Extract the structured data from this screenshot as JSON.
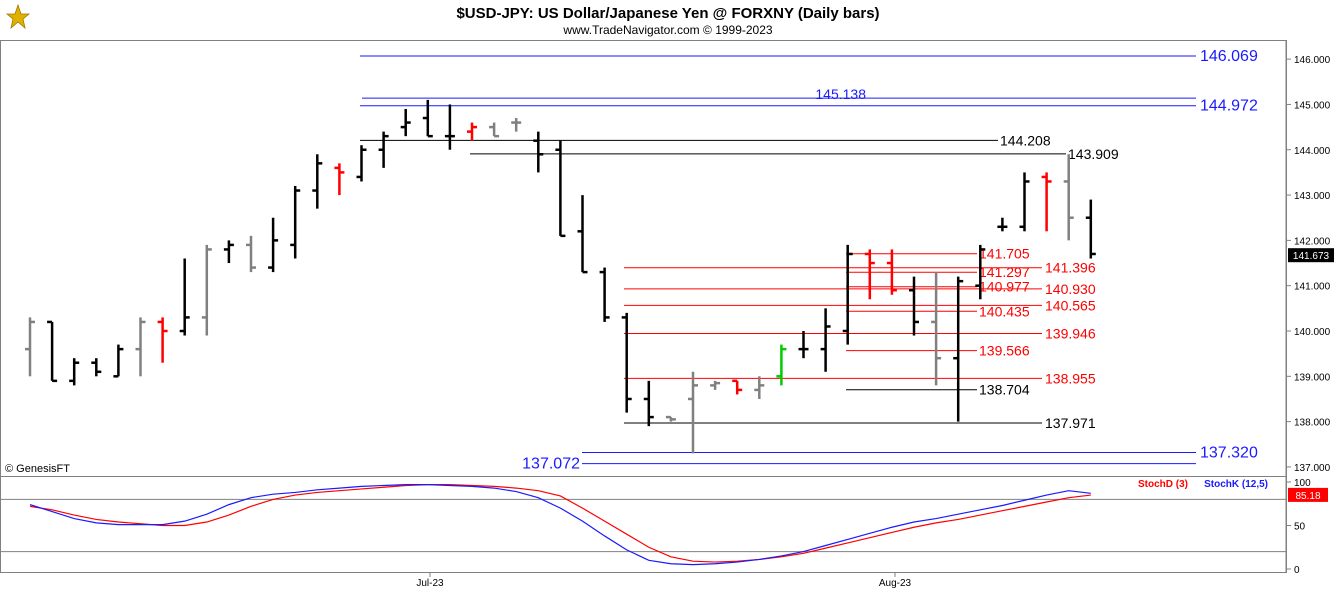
{
  "header": {
    "title": "$USD-JPY:  US Dollar/Japanese Yen @ FORXNY  (Daily bars)",
    "subtitle": "www.TradeNavigator.com © 1999-2023",
    "copyright": "© GenesisFT"
  },
  "colors": {
    "up_bar": "#000000",
    "down_bar": "#808080",
    "red_bar": "#ff0000",
    "green_bar": "#00cc00",
    "blue_level": "#1a1aff",
    "red_level": "#ff0000",
    "black_level": "#000000",
    "stochD": "#ff0000",
    "stochK": "#1a1aff"
  },
  "chart_data": [
    {
      "type": "bar",
      "subtype": "ohlc",
      "ylim": [
        136.8,
        146.4
      ],
      "y_ticks": [
        "137.000",
        "138.000",
        "139.000",
        "140.000",
        "141.000",
        "142.000",
        "143.000",
        "144.000",
        "145.000",
        "146.000"
      ],
      "x_ticks": [
        "Jul-23",
        "Aug-23"
      ],
      "last_price": "141.673",
      "bars": [
        {
          "o": 139.6,
          "h": 140.3,
          "l": 139.0,
          "c": 140.2,
          "col": "down"
        },
        {
          "o": 140.2,
          "h": 140.2,
          "l": 138.9,
          "c": 138.9,
          "col": "up"
        },
        {
          "o": 138.9,
          "h": 139.4,
          "l": 138.8,
          "c": 139.3,
          "col": "up"
        },
        {
          "o": 139.3,
          "h": 139.4,
          "l": 139.0,
          "c": 139.1,
          "col": "up"
        },
        {
          "o": 139.0,
          "h": 139.7,
          "l": 139.0,
          "c": 139.6,
          "col": "up"
        },
        {
          "o": 139.6,
          "h": 140.3,
          "l": 139.0,
          "c": 140.2,
          "col": "down"
        },
        {
          "o": 140.2,
          "h": 140.3,
          "l": 139.3,
          "c": 140.0,
          "col": "red"
        },
        {
          "o": 140.0,
          "h": 141.6,
          "l": 139.9,
          "c": 140.3,
          "col": "up"
        },
        {
          "o": 140.3,
          "h": 141.9,
          "l": 139.9,
          "c": 141.8,
          "col": "down"
        },
        {
          "o": 141.8,
          "h": 142.0,
          "l": 141.5,
          "c": 141.9,
          "col": "up"
        },
        {
          "o": 141.9,
          "h": 142.1,
          "l": 141.3,
          "c": 141.4,
          "col": "down"
        },
        {
          "o": 141.4,
          "h": 142.5,
          "l": 141.3,
          "c": 142.0,
          "col": "up"
        },
        {
          "o": 141.9,
          "h": 143.2,
          "l": 141.6,
          "c": 143.1,
          "col": "up"
        },
        {
          "o": 143.1,
          "h": 143.9,
          "l": 142.7,
          "c": 143.7,
          "col": "up"
        },
        {
          "o": 143.6,
          "h": 143.7,
          "l": 143.0,
          "c": 143.5,
          "col": "red"
        },
        {
          "o": 143.4,
          "h": 144.1,
          "l": 143.3,
          "c": 144.0,
          "col": "up"
        },
        {
          "o": 144.0,
          "h": 144.4,
          "l": 143.6,
          "c": 144.3,
          "col": "up"
        },
        {
          "o": 144.5,
          "h": 144.9,
          "l": 144.3,
          "c": 144.6,
          "col": "up"
        },
        {
          "o": 144.7,
          "h": 145.1,
          "l": 144.3,
          "c": 144.3,
          "col": "up"
        },
        {
          "o": 144.3,
          "h": 145.0,
          "l": 144.0,
          "c": 144.3,
          "col": "up"
        },
        {
          "o": 144.4,
          "h": 144.6,
          "l": 144.2,
          "c": 144.5,
          "col": "red"
        },
        {
          "o": 144.5,
          "h": 144.6,
          "l": 144.3,
          "c": 144.3,
          "col": "down"
        },
        {
          "o": 144.6,
          "h": 144.7,
          "l": 144.4,
          "c": 144.6,
          "col": "down"
        },
        {
          "o": 144.2,
          "h": 144.4,
          "l": 143.5,
          "c": 143.9,
          "col": "up"
        },
        {
          "o": 144.0,
          "h": 144.2,
          "l": 142.1,
          "c": 142.1,
          "col": "up"
        },
        {
          "o": 142.2,
          "h": 143.0,
          "l": 141.3,
          "c": 141.3,
          "col": "up"
        },
        {
          "o": 141.3,
          "h": 141.4,
          "l": 140.2,
          "c": 140.3,
          "col": "up"
        },
        {
          "o": 140.3,
          "h": 140.4,
          "l": 138.2,
          "c": 138.5,
          "col": "up"
        },
        {
          "o": 138.5,
          "h": 138.9,
          "l": 137.9,
          "c": 138.1,
          "col": "up"
        },
        {
          "o": 138.1,
          "h": 138.1,
          "l": 138.0,
          "c": 138.05,
          "col": "down"
        },
        {
          "o": 138.5,
          "h": 139.1,
          "l": 137.3,
          "c": 138.8,
          "col": "down"
        },
        {
          "o": 138.8,
          "h": 138.9,
          "l": 138.7,
          "c": 138.85,
          "col": "down"
        },
        {
          "o": 138.9,
          "h": 138.9,
          "l": 138.6,
          "c": 138.7,
          "col": "red"
        },
        {
          "o": 138.7,
          "h": 139.0,
          "l": 138.5,
          "c": 138.8,
          "col": "down"
        },
        {
          "o": 139.0,
          "h": 139.7,
          "l": 138.8,
          "c": 139.6,
          "col": "green"
        },
        {
          "o": 139.6,
          "h": 140.0,
          "l": 139.4,
          "c": 139.6,
          "col": "up"
        },
        {
          "o": 139.6,
          "h": 140.5,
          "l": 139.1,
          "c": 140.1,
          "col": "up"
        },
        {
          "o": 140.0,
          "h": 141.9,
          "l": 139.7,
          "c": 141.7,
          "col": "up"
        },
        {
          "o": 141.7,
          "h": 141.8,
          "l": 140.7,
          "c": 141.5,
          "col": "red"
        },
        {
          "o": 141.5,
          "h": 141.8,
          "l": 140.8,
          "c": 140.9,
          "col": "red"
        },
        {
          "o": 140.9,
          "h": 141.2,
          "l": 139.9,
          "c": 140.2,
          "col": "up"
        },
        {
          "o": 140.2,
          "h": 141.3,
          "l": 138.8,
          "c": 139.4,
          "col": "down"
        },
        {
          "o": 139.4,
          "h": 141.2,
          "l": 138.0,
          "c": 141.1,
          "col": "up"
        },
        {
          "o": 141.0,
          "h": 141.9,
          "l": 140.7,
          "c": 141.8,
          "col": "up"
        },
        {
          "o": 142.3,
          "h": 142.5,
          "l": 142.2,
          "c": 142.3,
          "col": "up"
        },
        {
          "o": 142.3,
          "h": 143.5,
          "l": 142.2,
          "c": 143.3,
          "col": "up"
        },
        {
          "o": 143.4,
          "h": 143.5,
          "l": 142.2,
          "c": 143.3,
          "col": "red"
        },
        {
          "o": 143.3,
          "h": 143.9,
          "l": 142.0,
          "c": 142.5,
          "col": "down"
        },
        {
          "o": 142.5,
          "h": 142.9,
          "l": 141.6,
          "c": 141.7,
          "col": "up"
        }
      ],
      "levels": [
        {
          "value": 146.069,
          "label": "146.069",
          "color": "blue",
          "side": "right"
        },
        {
          "value": 145.138,
          "label": "145.138",
          "color": "blue",
          "side": "mid"
        },
        {
          "value": 144.972,
          "label": "144.972",
          "color": "blue",
          "side": "right"
        },
        {
          "value": 144.208,
          "label": "144.208",
          "color": "black",
          "side": "mid"
        },
        {
          "value": 143.909,
          "label": "143.909",
          "color": "black",
          "side": "mid2"
        },
        {
          "value": 141.705,
          "label": "141.705",
          "color": "red",
          "side": "inner"
        },
        {
          "value": 141.396,
          "label": "141.396",
          "color": "red",
          "side": "mid2"
        },
        {
          "value": 141.297,
          "label": "141.297",
          "color": "red",
          "side": "inner"
        },
        {
          "value": 140.977,
          "label": "140.977",
          "color": "red",
          "side": "inner"
        },
        {
          "value": 140.93,
          "label": "140.930",
          "color": "red",
          "side": "mid2"
        },
        {
          "value": 140.565,
          "label": "140.565",
          "color": "red",
          "side": "mid2"
        },
        {
          "value": 140.435,
          "label": "140.435",
          "color": "red",
          "side": "inner"
        },
        {
          "value": 139.946,
          "label": "139.946",
          "color": "red",
          "side": "mid2"
        },
        {
          "value": 139.566,
          "label": "139.566",
          "color": "red",
          "side": "inner"
        },
        {
          "value": 138.955,
          "label": "138.955",
          "color": "red",
          "side": "mid2"
        },
        {
          "value": 138.704,
          "label": "138.704",
          "color": "black",
          "side": "inner"
        },
        {
          "value": 137.971,
          "label": "137.971",
          "color": "black",
          "side": "mid2"
        },
        {
          "value": 137.32,
          "label": "137.320",
          "color": "blue",
          "side": "right"
        },
        {
          "value": 137.072,
          "label": "137.072",
          "color": "blue",
          "side": "left"
        }
      ]
    },
    {
      "type": "line",
      "ylim": [
        0,
        100
      ],
      "y_ticks": [
        "0",
        "50",
        "100"
      ],
      "last_value": "85.18",
      "series": [
        {
          "name": "StochD (3)",
          "color": "red",
          "values": [
            72,
            68,
            62,
            57,
            54,
            52,
            50,
            50,
            54,
            62,
            72,
            80,
            85,
            88,
            90,
            92,
            94,
            96,
            97,
            97,
            96,
            95,
            93,
            90,
            84,
            70,
            55,
            40,
            25,
            14,
            9,
            8,
            9,
            11,
            14,
            18,
            24,
            30,
            36,
            42,
            48,
            53,
            57,
            62,
            67,
            72,
            77,
            82,
            85
          ]
        },
        {
          "name": "StochK (12,5)",
          "color": "blue",
          "values": [
            74,
            66,
            58,
            53,
            51,
            51,
            51,
            55,
            63,
            74,
            82,
            86,
            88,
            91,
            93,
            95,
            96,
            97,
            97,
            96,
            95,
            93,
            89,
            82,
            70,
            55,
            38,
            22,
            10,
            6,
            5,
            6,
            8,
            11,
            15,
            20,
            27,
            34,
            41,
            48,
            54,
            58,
            63,
            68,
            73,
            79,
            85,
            90,
            87
          ]
        }
      ]
    }
  ]
}
